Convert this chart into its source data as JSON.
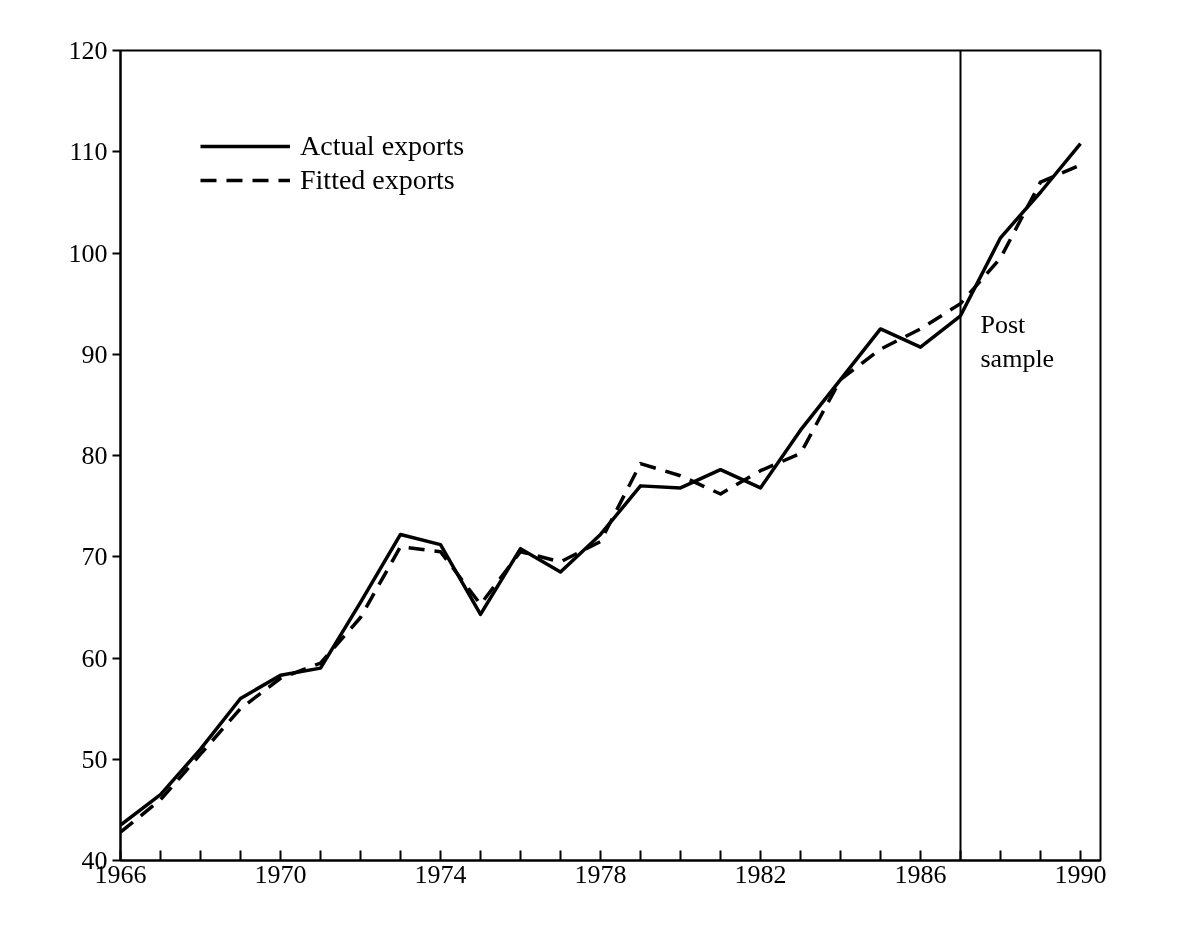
{
  "chart_data": {
    "type": "line",
    "x": [
      1966,
      1967,
      1968,
      1969,
      1970,
      1971,
      1972,
      1973,
      1974,
      1975,
      1976,
      1977,
      1978,
      1979,
      1980,
      1981,
      1982,
      1983,
      1984,
      1985,
      1986,
      1987,
      1988,
      1989,
      1990
    ],
    "series": [
      {
        "name": "Actual exports",
        "color": "#000000",
        "line_style": "solid",
        "values": [
          43.5,
          46.5,
          51,
          56,
          58.3,
          59,
          65.5,
          72.2,
          71.2,
          64.3,
          70.8,
          68.5,
          72.2,
          77,
          76.8,
          78.6,
          76.8,
          82.5,
          87.5,
          92.5,
          90.7,
          93.8,
          101.5,
          106,
          110.8
        ]
      },
      {
        "name": "Fitted exports",
        "color": "#000000",
        "line_style": "dashed",
        "values": [
          42.8,
          46,
          50.5,
          55,
          58,
          59.5,
          64,
          71,
          70.5,
          65.3,
          70.5,
          69.5,
          71.5,
          79.2,
          78,
          76.2,
          78.5,
          80.2,
          87.5,
          90.5,
          92.5,
          95,
          99.5,
          107,
          108.7
        ]
      }
    ],
    "xlim": [
      1966,
      1990.5
    ],
    "xticks": [
      1966,
      {
        "value": 1967,
        "label": null
      },
      {
        "value": 1968,
        "label": null
      },
      {
        "value": 1969,
        "label": null
      },
      1970,
      {
        "value": 1971,
        "label": null
      },
      {
        "value": 1972,
        "label": null
      },
      {
        "value": 1973,
        "label": null
      },
      1974,
      {
        "value": 1975,
        "label": null
      },
      {
        "value": 1976,
        "label": null
      },
      {
        "value": 1977,
        "label": null
      },
      1978,
      {
        "value": 1979,
        "label": null
      },
      {
        "value": 1980,
        "label": null
      },
      {
        "value": 1981,
        "label": null
      },
      1982,
      {
        "value": 1983,
        "label": null
      },
      {
        "value": 1984,
        "label": null
      },
      {
        "value": 1985,
        "label": null
      },
      1986,
      {
        "value": 1987,
        "label": null
      },
      {
        "value": 1988,
        "label": null
      },
      {
        "value": 1989,
        "label": null
      },
      1990
    ],
    "ylim": [
      40,
      120
    ],
    "yticks": [
      40,
      50,
      60,
      70,
      80,
      90,
      100,
      110,
      120
    ],
    "ref_lines": [
      {
        "axis": "x",
        "value": 1987,
        "label": "Post\nsample",
        "color": "#000000"
      }
    ],
    "legend": "top left",
    "grid": false
  }
}
